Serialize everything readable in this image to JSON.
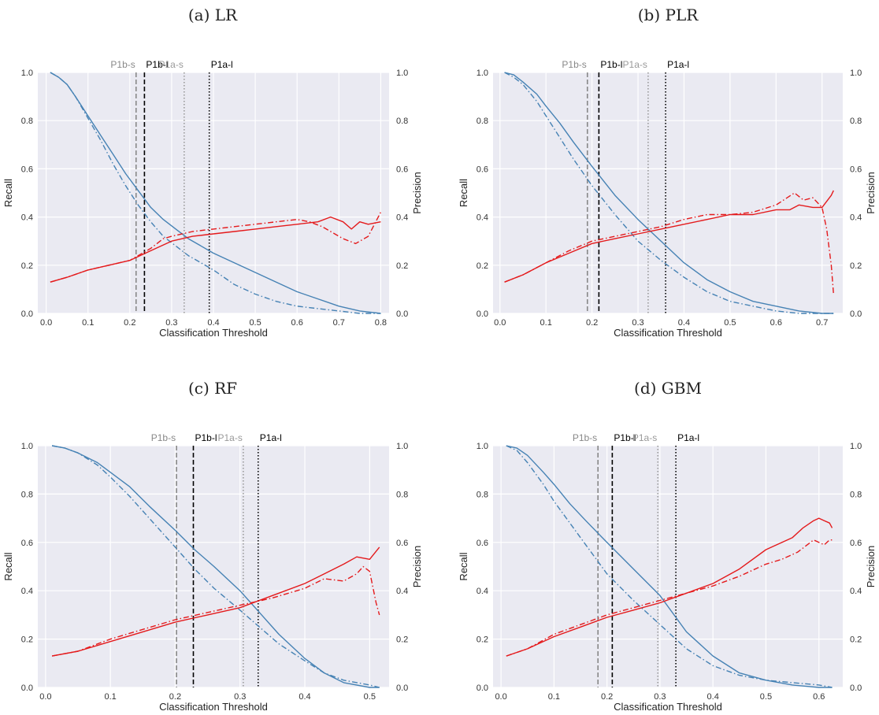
{
  "chart_data": [
    {
      "type": "line",
      "title": "(a) LR",
      "xlabel": "Classification Threshold",
      "ylabel_left": "Recall",
      "ylabel_right": "Precision",
      "xlim": [
        -0.02,
        0.82
      ],
      "ylim": [
        0,
        1
      ],
      "xticks": [
        0.0,
        0.1,
        0.2,
        0.3,
        0.4,
        0.5,
        0.6,
        0.7,
        0.8
      ],
      "yticks": [
        0.0,
        0.2,
        0.4,
        0.6,
        0.8,
        1.0
      ],
      "grid": true,
      "vlines": [
        {
          "label": "P1b-s",
          "x": 0.215,
          "style": "dashed",
          "color": "#888888"
        },
        {
          "label": "P1b-l",
          "x": 0.235,
          "style": "dashed",
          "color": "#000000"
        },
        {
          "label": "P1a-s",
          "x": 0.33,
          "style": "dotted",
          "color": "#999999"
        },
        {
          "label": "P1a-l",
          "x": 0.39,
          "style": "dotted",
          "color": "#000000"
        }
      ],
      "series": [
        {
          "metric": "recall",
          "style": "solid",
          "color": "#4682b4",
          "x": [
            0.01,
            0.03,
            0.05,
            0.07,
            0.1,
            0.13,
            0.16,
            0.19,
            0.22,
            0.25,
            0.28,
            0.31,
            0.34,
            0.37,
            0.4,
            0.45,
            0.5,
            0.55,
            0.6,
            0.65,
            0.7,
            0.75,
            0.8
          ],
          "y": [
            1.0,
            0.98,
            0.95,
            0.9,
            0.82,
            0.74,
            0.66,
            0.58,
            0.51,
            0.44,
            0.39,
            0.35,
            0.31,
            0.28,
            0.25,
            0.21,
            0.17,
            0.13,
            0.09,
            0.06,
            0.03,
            0.01,
            0.0
          ]
        },
        {
          "metric": "recall",
          "style": "dashdot",
          "color": "#4682b4",
          "x": [
            0.01,
            0.03,
            0.05,
            0.07,
            0.1,
            0.13,
            0.16,
            0.19,
            0.22,
            0.25,
            0.28,
            0.31,
            0.34,
            0.37,
            0.4,
            0.45,
            0.5,
            0.55,
            0.6,
            0.65,
            0.7,
            0.75,
            0.8
          ],
          "y": [
            1.0,
            0.98,
            0.95,
            0.9,
            0.81,
            0.72,
            0.62,
            0.53,
            0.45,
            0.38,
            0.32,
            0.28,
            0.24,
            0.21,
            0.18,
            0.12,
            0.08,
            0.05,
            0.03,
            0.02,
            0.01,
            0.0,
            0.0
          ]
        },
        {
          "metric": "precision",
          "style": "solid",
          "color": "#e41a1c",
          "x": [
            0.01,
            0.05,
            0.1,
            0.15,
            0.2,
            0.25,
            0.3,
            0.35,
            0.4,
            0.45,
            0.5,
            0.55,
            0.6,
            0.65,
            0.68,
            0.71,
            0.73,
            0.75,
            0.77,
            0.8
          ],
          "y": [
            0.13,
            0.15,
            0.18,
            0.2,
            0.22,
            0.26,
            0.3,
            0.32,
            0.33,
            0.34,
            0.35,
            0.36,
            0.37,
            0.38,
            0.4,
            0.38,
            0.35,
            0.38,
            0.37,
            0.38
          ]
        },
        {
          "metric": "precision",
          "style": "dashdot",
          "color": "#e41a1c",
          "x": [
            0.01,
            0.05,
            0.1,
            0.15,
            0.2,
            0.25,
            0.28,
            0.3,
            0.35,
            0.4,
            0.45,
            0.5,
            0.55,
            0.6,
            0.63,
            0.66,
            0.69,
            0.71,
            0.74,
            0.77,
            0.8
          ],
          "y": [
            0.13,
            0.15,
            0.18,
            0.2,
            0.22,
            0.27,
            0.31,
            0.32,
            0.34,
            0.35,
            0.36,
            0.37,
            0.38,
            0.39,
            0.38,
            0.36,
            0.33,
            0.31,
            0.29,
            0.32,
            0.42
          ]
        }
      ]
    },
    {
      "type": "line",
      "title": "(b) PLR",
      "xlabel": "Classification Threshold",
      "ylabel_left": "Recall",
      "ylabel_right": "Precision",
      "xlim": [
        -0.015,
        0.745
      ],
      "ylim": [
        0,
        1
      ],
      "xticks": [
        0.0,
        0.1,
        0.2,
        0.3,
        0.4,
        0.5,
        0.6,
        0.7
      ],
      "yticks": [
        0.0,
        0.2,
        0.4,
        0.6,
        0.8,
        1.0
      ],
      "grid": true,
      "vlines": [
        {
          "label": "P1b-s",
          "x": 0.19,
          "style": "dashed",
          "color": "#888888"
        },
        {
          "label": "P1b-l",
          "x": 0.215,
          "style": "dashed",
          "color": "#000000"
        },
        {
          "label": "P1a-s",
          "x": 0.322,
          "style": "dotted",
          "color": "#999999"
        },
        {
          "label": "P1a-l",
          "x": 0.36,
          "style": "dotted",
          "color": "#000000"
        }
      ],
      "series": [
        {
          "metric": "recall",
          "style": "solid",
          "color": "#4682b4",
          "x": [
            0.01,
            0.03,
            0.05,
            0.08,
            0.1,
            0.13,
            0.16,
            0.2,
            0.25,
            0.3,
            0.35,
            0.4,
            0.45,
            0.5,
            0.55,
            0.6,
            0.65,
            0.7,
            0.725
          ],
          "y": [
            1.0,
            0.99,
            0.96,
            0.91,
            0.86,
            0.79,
            0.71,
            0.61,
            0.49,
            0.39,
            0.3,
            0.21,
            0.14,
            0.09,
            0.05,
            0.03,
            0.01,
            0.0,
            0.0
          ]
        },
        {
          "metric": "recall",
          "style": "dashdot",
          "color": "#4682b4",
          "x": [
            0.01,
            0.03,
            0.05,
            0.08,
            0.1,
            0.13,
            0.16,
            0.2,
            0.25,
            0.3,
            0.35,
            0.4,
            0.45,
            0.5,
            0.55,
            0.6,
            0.65,
            0.7,
            0.725
          ],
          "y": [
            1.0,
            0.98,
            0.95,
            0.88,
            0.82,
            0.73,
            0.64,
            0.53,
            0.41,
            0.3,
            0.22,
            0.15,
            0.09,
            0.05,
            0.03,
            0.01,
            0.0,
            0.0,
            0.0
          ]
        },
        {
          "metric": "precision",
          "style": "solid",
          "color": "#e41a1c",
          "x": [
            0.01,
            0.05,
            0.1,
            0.15,
            0.2,
            0.25,
            0.3,
            0.35,
            0.4,
            0.45,
            0.5,
            0.55,
            0.6,
            0.63,
            0.65,
            0.68,
            0.7,
            0.72,
            0.725
          ],
          "y": [
            0.13,
            0.16,
            0.21,
            0.25,
            0.29,
            0.31,
            0.33,
            0.35,
            0.37,
            0.39,
            0.41,
            0.41,
            0.43,
            0.43,
            0.45,
            0.44,
            0.44,
            0.49,
            0.51
          ]
        },
        {
          "metric": "precision",
          "style": "dashdot",
          "color": "#e41a1c",
          "x": [
            0.01,
            0.05,
            0.1,
            0.15,
            0.2,
            0.25,
            0.3,
            0.35,
            0.4,
            0.45,
            0.5,
            0.55,
            0.6,
            0.64,
            0.66,
            0.68,
            0.7,
            0.71,
            0.72,
            0.725
          ],
          "y": [
            0.13,
            0.16,
            0.21,
            0.26,
            0.3,
            0.32,
            0.34,
            0.36,
            0.39,
            0.41,
            0.41,
            0.42,
            0.45,
            0.5,
            0.47,
            0.48,
            0.44,
            0.35,
            0.2,
            0.08
          ]
        }
      ]
    },
    {
      "type": "line",
      "title": "(c) RF",
      "xlabel": "Classification Threshold",
      "ylabel_left": "Recall",
      "ylabel_right": "Precision",
      "xlim": [
        -0.012,
        0.53
      ],
      "ylim": [
        0,
        1
      ],
      "xticks": [
        0.0,
        0.1,
        0.2,
        0.3,
        0.4,
        0.5
      ],
      "yticks": [
        0.0,
        0.2,
        0.4,
        0.6,
        0.8,
        1.0
      ],
      "grid": true,
      "vlines": [
        {
          "label": "P1b-s",
          "x": 0.202,
          "style": "dashed",
          "color": "#888888"
        },
        {
          "label": "P1b-l",
          "x": 0.228,
          "style": "dashed",
          "color": "#000000"
        },
        {
          "label": "P1a-s",
          "x": 0.305,
          "style": "dotted",
          "color": "#999999"
        },
        {
          "label": "P1a-l",
          "x": 0.328,
          "style": "dotted",
          "color": "#000000"
        }
      ],
      "series": [
        {
          "metric": "recall",
          "style": "solid",
          "color": "#4682b4",
          "x": [
            0.01,
            0.03,
            0.05,
            0.08,
            0.1,
            0.13,
            0.16,
            0.2,
            0.23,
            0.26,
            0.3,
            0.33,
            0.36,
            0.4,
            0.43,
            0.46,
            0.5,
            0.515
          ],
          "y": [
            1.0,
            0.99,
            0.97,
            0.93,
            0.89,
            0.83,
            0.75,
            0.65,
            0.57,
            0.5,
            0.4,
            0.31,
            0.22,
            0.12,
            0.06,
            0.02,
            0.0,
            0.0
          ]
        },
        {
          "metric": "recall",
          "style": "dashdot",
          "color": "#4682b4",
          "x": [
            0.01,
            0.03,
            0.05,
            0.08,
            0.1,
            0.13,
            0.16,
            0.2,
            0.23,
            0.26,
            0.3,
            0.33,
            0.36,
            0.4,
            0.43,
            0.46,
            0.5,
            0.515
          ],
          "y": [
            1.0,
            0.99,
            0.97,
            0.92,
            0.87,
            0.79,
            0.7,
            0.58,
            0.49,
            0.41,
            0.32,
            0.25,
            0.18,
            0.11,
            0.06,
            0.03,
            0.01,
            0.0
          ]
        },
        {
          "metric": "precision",
          "style": "solid",
          "color": "#e41a1c",
          "x": [
            0.01,
            0.05,
            0.1,
            0.15,
            0.2,
            0.25,
            0.3,
            0.35,
            0.4,
            0.43,
            0.46,
            0.48,
            0.5,
            0.515
          ],
          "y": [
            0.13,
            0.15,
            0.19,
            0.23,
            0.27,
            0.3,
            0.33,
            0.38,
            0.43,
            0.47,
            0.51,
            0.54,
            0.53,
            0.58
          ]
        },
        {
          "metric": "precision",
          "style": "dashdot",
          "color": "#e41a1c",
          "x": [
            0.01,
            0.05,
            0.1,
            0.15,
            0.2,
            0.25,
            0.3,
            0.35,
            0.4,
            0.43,
            0.46,
            0.48,
            0.49,
            0.5,
            0.51,
            0.515
          ],
          "y": [
            0.13,
            0.15,
            0.2,
            0.24,
            0.28,
            0.31,
            0.34,
            0.37,
            0.41,
            0.45,
            0.44,
            0.47,
            0.5,
            0.48,
            0.35,
            0.3
          ]
        }
      ]
    },
    {
      "type": "line",
      "title": "(d) GBM",
      "xlabel": "Classification Threshold",
      "ylabel_left": "Recall",
      "ylabel_right": "Precision",
      "xlim": [
        -0.015,
        0.645
      ],
      "ylim": [
        0,
        1
      ],
      "xticks": [
        0.0,
        0.1,
        0.2,
        0.3,
        0.4,
        0.5,
        0.6
      ],
      "yticks": [
        0.0,
        0.2,
        0.4,
        0.6,
        0.8,
        1.0
      ],
      "grid": true,
      "vlines": [
        {
          "label": "P1b-s",
          "x": 0.183,
          "style": "dashed",
          "color": "#888888"
        },
        {
          "label": "P1b-l",
          "x": 0.21,
          "style": "dashed",
          "color": "#000000"
        },
        {
          "label": "P1a-s",
          "x": 0.296,
          "style": "dotted",
          "color": "#999999"
        },
        {
          "label": "P1a-l",
          "x": 0.33,
          "style": "dotted",
          "color": "#000000"
        }
      ],
      "series": [
        {
          "metric": "recall",
          "style": "solid",
          "color": "#4682b4",
          "x": [
            0.01,
            0.03,
            0.05,
            0.08,
            0.1,
            0.13,
            0.16,
            0.2,
            0.25,
            0.3,
            0.35,
            0.4,
            0.45,
            0.5,
            0.55,
            0.6,
            0.625
          ],
          "y": [
            1.0,
            0.99,
            0.96,
            0.89,
            0.84,
            0.76,
            0.69,
            0.6,
            0.49,
            0.38,
            0.23,
            0.13,
            0.06,
            0.03,
            0.01,
            0.0,
            0.0
          ]
        },
        {
          "metric": "recall",
          "style": "dashdot",
          "color": "#4682b4",
          "x": [
            0.01,
            0.03,
            0.05,
            0.08,
            0.1,
            0.13,
            0.16,
            0.2,
            0.25,
            0.3,
            0.35,
            0.4,
            0.45,
            0.5,
            0.55,
            0.6,
            0.625
          ],
          "y": [
            1.0,
            0.98,
            0.93,
            0.84,
            0.77,
            0.68,
            0.59,
            0.47,
            0.36,
            0.26,
            0.16,
            0.09,
            0.05,
            0.03,
            0.02,
            0.01,
            0.0
          ]
        },
        {
          "metric": "precision",
          "style": "solid",
          "color": "#e41a1c",
          "x": [
            0.01,
            0.05,
            0.1,
            0.15,
            0.2,
            0.25,
            0.3,
            0.35,
            0.4,
            0.45,
            0.5,
            0.55,
            0.57,
            0.59,
            0.6,
            0.61,
            0.62,
            0.625
          ],
          "y": [
            0.13,
            0.16,
            0.21,
            0.25,
            0.29,
            0.32,
            0.35,
            0.39,
            0.43,
            0.49,
            0.57,
            0.62,
            0.66,
            0.69,
            0.7,
            0.69,
            0.68,
            0.66
          ]
        },
        {
          "metric": "precision",
          "style": "dashdot",
          "color": "#e41a1c",
          "x": [
            0.01,
            0.05,
            0.1,
            0.15,
            0.2,
            0.25,
            0.3,
            0.35,
            0.4,
            0.45,
            0.5,
            0.53,
            0.56,
            0.59,
            0.6,
            0.61,
            0.62,
            0.625
          ],
          "y": [
            0.13,
            0.16,
            0.22,
            0.26,
            0.3,
            0.33,
            0.36,
            0.39,
            0.42,
            0.46,
            0.51,
            0.53,
            0.56,
            0.61,
            0.6,
            0.59,
            0.61,
            0.61
          ]
        }
      ]
    }
  ]
}
